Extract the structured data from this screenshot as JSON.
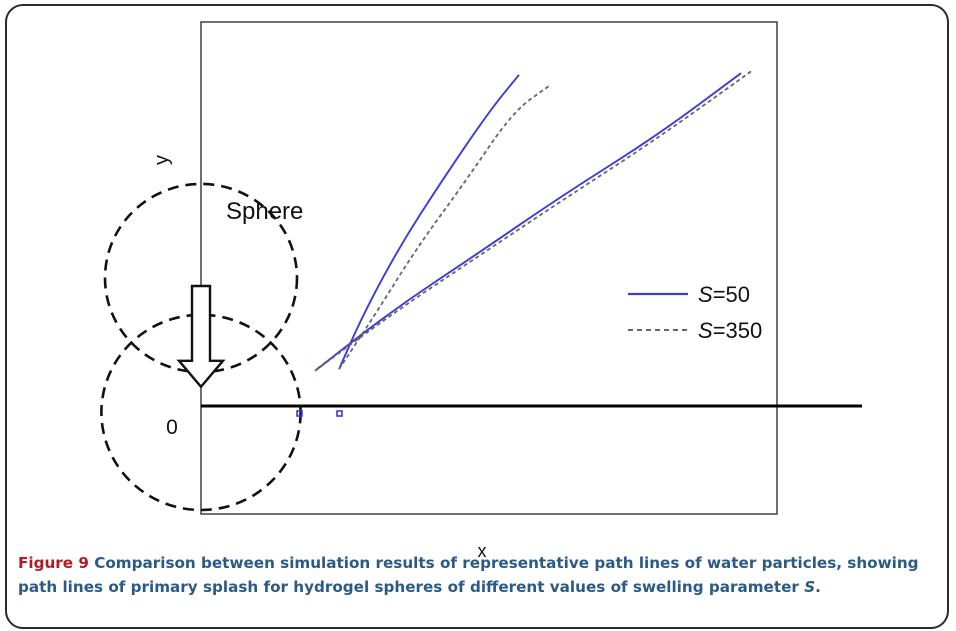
{
  "chart_data": {
    "type": "line",
    "title": "",
    "xlabel": "x",
    "ylabel": "y",
    "origin_label": "0",
    "annotation": "Sphere",
    "grid": false,
    "legend_position": "right",
    "series": [
      {
        "name": "S=50",
        "symbol": "S",
        "value_text": "=50",
        "color": "#3b3bd9",
        "dash": "solid",
        "paths": [
          [
            [
              1.15,
              0.23
            ],
            [
              1.35,
              0.57
            ],
            [
              1.65,
              0.99
            ],
            [
              2.0,
              1.4
            ],
            [
              2.4,
              1.84
            ],
            [
              2.65,
              2.07
            ]
          ],
          [
            [
              0.95,
              0.22
            ],
            [
              1.6,
              0.6
            ],
            [
              2.3,
              0.95
            ],
            [
              3.0,
              1.31
            ],
            [
              3.8,
              1.69
            ],
            [
              4.5,
              2.08
            ]
          ]
        ]
      },
      {
        "name": "S=350",
        "symbol": "S",
        "value_text": "=350",
        "color": "#666666",
        "dash": "dashed",
        "paths": [
          [
            [
              1.15,
              0.23
            ],
            [
              1.45,
              0.57
            ],
            [
              1.8,
              0.99
            ],
            [
              2.2,
              1.4
            ],
            [
              2.6,
              1.84
            ],
            [
              2.9,
              2.0
            ]
          ],
          [
            [
              0.95,
              0.22
            ],
            [
              1.6,
              0.58
            ],
            [
              2.3,
              0.93
            ],
            [
              3.0,
              1.28
            ],
            [
              3.8,
              1.67
            ],
            [
              4.6,
              2.1
            ]
          ]
        ]
      }
    ],
    "sphere_positions": [
      {
        "cx": 0,
        "cy": 0.8,
        "r": 0.8
      },
      {
        "cx": 0,
        "cy": -0.04,
        "r": 0.83
      }
    ],
    "arrow": {
      "x": 0,
      "y_from": 0.75,
      "y_to": 0.12
    }
  },
  "caption": {
    "lead": "Figure 9",
    "text": "Comparison between simulation results of representative path lines of water particles, showing path lines of primary splash for hydrogel spheres of different values of swelling parameter ",
    "variable": "S",
    "end": "."
  },
  "colors": {
    "caption_lead": "#b51a24",
    "caption_text": "#2c5a86",
    "frame": "#2b2b2b"
  }
}
